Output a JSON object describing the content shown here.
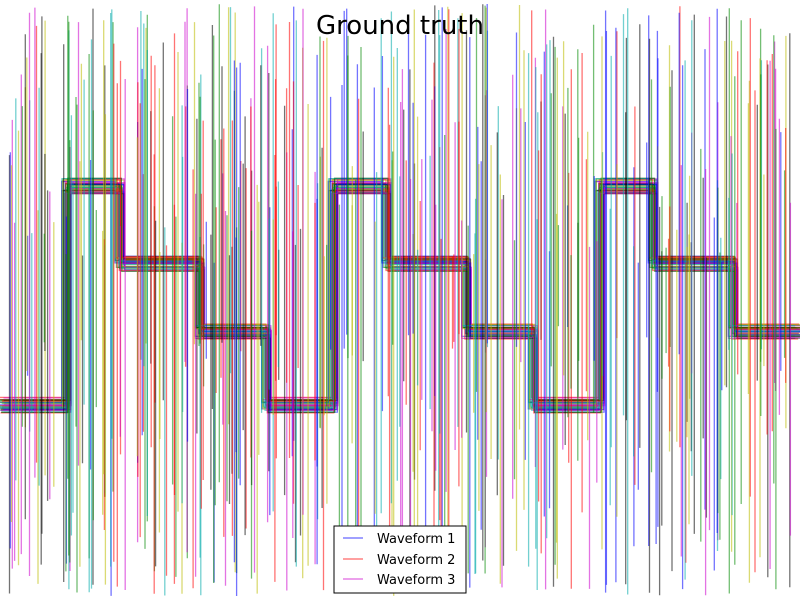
{
  "chart_data": {
    "type": "line",
    "title": "Ground truth",
    "xlabel": "",
    "ylabel": "",
    "axes_visible": false,
    "grid": false,
    "legend_position": "bottom-center",
    "x_range": [
      0,
      12
    ],
    "y_range": [
      -4,
      6
    ],
    "series": [
      {
        "name": "Waveform 1",
        "color": "#0000ff"
      },
      {
        "name": "Waveform 2",
        "color": "#ff0000"
      },
      {
        "name": "Waveform 3",
        "color": "#cc00cc"
      }
    ],
    "levels": [
      4,
      2,
      0,
      -1
    ],
    "period": 4,
    "pattern": [
      {
        "x_start": 0.0,
        "x_end": 1.0,
        "level": -1
      },
      {
        "x_start": 1.0,
        "x_end": 1.8,
        "level": 4
      },
      {
        "x_start": 1.8,
        "x_end": 3.0,
        "level": 2
      },
      {
        "x_start": 3.0,
        "x_end": 4.0,
        "level": 0
      }
    ]
  }
}
